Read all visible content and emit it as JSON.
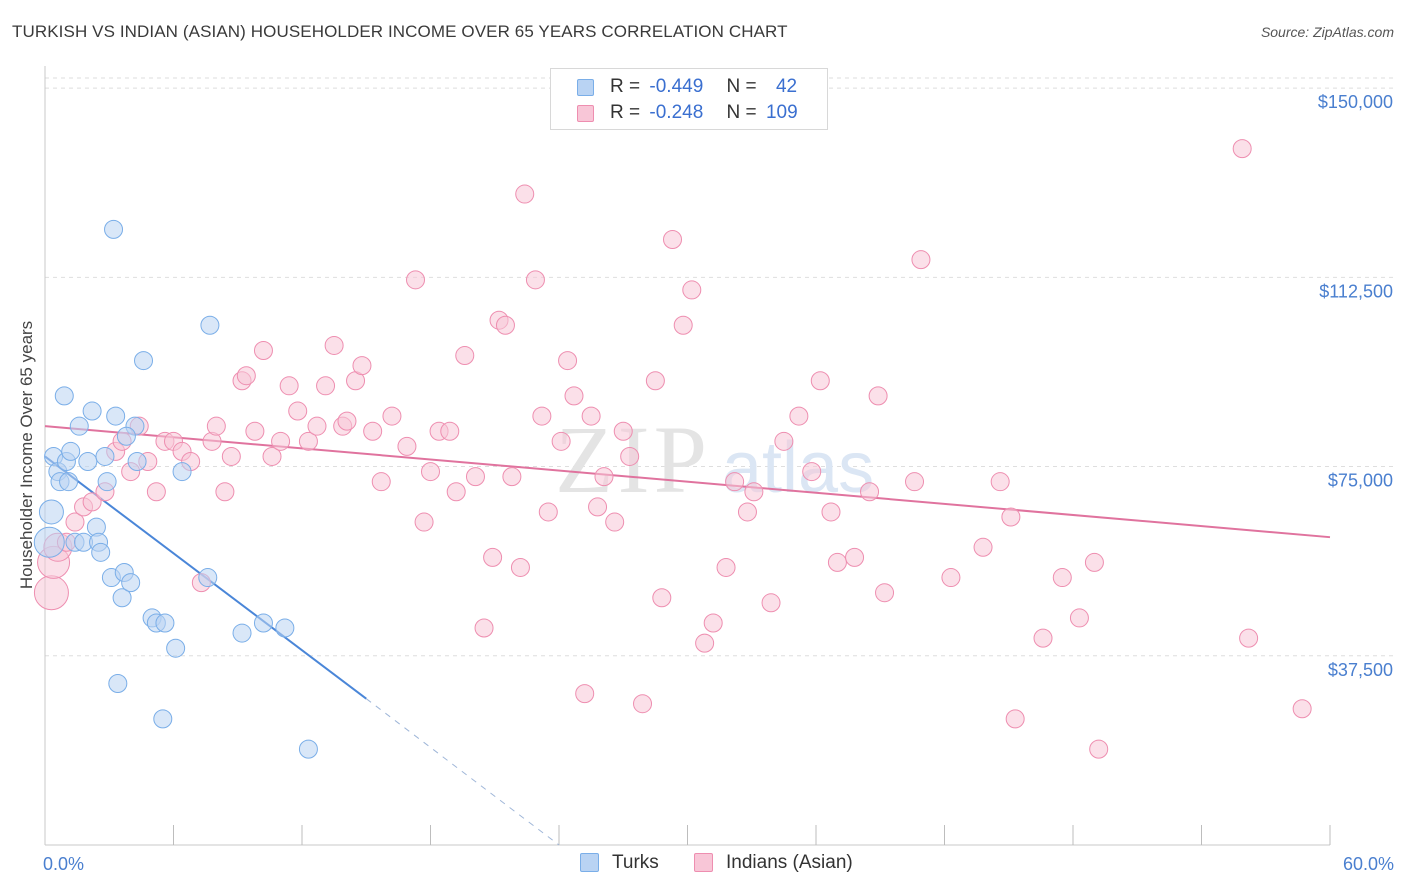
{
  "title": "TURKISH VS INDIAN (ASIAN) HOUSEHOLDER INCOME OVER 65 YEARS CORRELATION CHART",
  "source": "Source: ZipAtlas.com",
  "watermark": {
    "zip": "ZIP",
    "atlas": "atlas"
  },
  "legend_stats": [
    {
      "r_label": "R =",
      "r_value": "-0.449",
      "n_label": "N =",
      "n_value": "42",
      "color": "#7aaee8",
      "fill": "#b9d3f3"
    },
    {
      "r_label": "R =",
      "r_value": "-0.248",
      "n_label": "N =",
      "n_value": "109",
      "color": "#ee8eb0",
      "fill": "#f8c6d7"
    }
  ],
  "chart_data": {
    "type": "scatter",
    "title": "TURKISH VS INDIAN (ASIAN) HOUSEHOLDER INCOME OVER 65 YEARS CORRELATION CHART",
    "xlabel": "",
    "ylabel": "Householder Income Over 65 years",
    "xlim": [
      0,
      60
    ],
    "ylim": [
      0,
      152000
    ],
    "x_tick_labels": [
      "0.0%",
      "60.0%"
    ],
    "y_ticks": [
      37500,
      75000,
      112500,
      150000
    ],
    "y_tick_labels": [
      "$37,500",
      "$75,000",
      "$112,500",
      "$150,000"
    ],
    "grid": true,
    "legend_position": "bottom",
    "series": [
      {
        "name": "Turks",
        "color": "#4a86d8",
        "fill": "#b9d3f3",
        "points": [
          [
            0.2,
            60000
          ],
          [
            0.3,
            66000
          ],
          [
            0.4,
            77000
          ],
          [
            0.6,
            74000
          ],
          [
            0.7,
            72000
          ],
          [
            0.9,
            89000
          ],
          [
            1.0,
            76000
          ],
          [
            1.1,
            72000
          ],
          [
            1.2,
            78000
          ],
          [
            1.4,
            60000
          ],
          [
            1.6,
            83000
          ],
          [
            1.8,
            60000
          ],
          [
            2.0,
            76000
          ],
          [
            2.2,
            86000
          ],
          [
            2.4,
            63000
          ],
          [
            2.5,
            60000
          ],
          [
            2.6,
            58000
          ],
          [
            2.8,
            77000
          ],
          [
            2.9,
            72000
          ],
          [
            3.1,
            53000
          ],
          [
            3.3,
            85000
          ],
          [
            3.4,
            32000
          ],
          [
            3.6,
            49000
          ],
          [
            3.7,
            54000
          ],
          [
            4.0,
            52000
          ],
          [
            4.2,
            83000
          ],
          [
            4.3,
            76000
          ],
          [
            4.6,
            96000
          ],
          [
            5.0,
            45000
          ],
          [
            5.2,
            44000
          ],
          [
            5.5,
            25000
          ],
          [
            6.1,
            39000
          ],
          [
            6.4,
            74000
          ],
          [
            7.6,
            53000
          ],
          [
            3.2,
            122000
          ],
          [
            7.7,
            103000
          ],
          [
            9.2,
            42000
          ],
          [
            10.2,
            44000
          ],
          [
            11.2,
            43000
          ],
          [
            12.3,
            19000
          ],
          [
            3.8,
            81000
          ],
          [
            5.6,
            44000
          ]
        ],
        "trend": {
          "x_start": 0.0,
          "y_start": 77000,
          "x_end": 15.0,
          "y_end": 29000,
          "dash_x_end": 24.0,
          "dash_y_end": 0
        }
      },
      {
        "name": "Indians (Asian)",
        "color": "#e0739e",
        "fill": "#f8c6d7",
        "points": [
          [
            0.3,
            50000
          ],
          [
            0.4,
            56000
          ],
          [
            0.6,
            59000
          ],
          [
            1.0,
            60000
          ],
          [
            1.4,
            64000
          ],
          [
            1.8,
            67000
          ],
          [
            2.2,
            68000
          ],
          [
            2.8,
            70000
          ],
          [
            3.3,
            78000
          ],
          [
            3.6,
            80000
          ],
          [
            4.0,
            74000
          ],
          [
            4.4,
            83000
          ],
          [
            4.8,
            76000
          ],
          [
            5.2,
            70000
          ],
          [
            5.6,
            80000
          ],
          [
            6.0,
            80000
          ],
          [
            6.4,
            78000
          ],
          [
            6.8,
            76000
          ],
          [
            7.3,
            52000
          ],
          [
            7.8,
            80000
          ],
          [
            8.0,
            83000
          ],
          [
            8.4,
            70000
          ],
          [
            8.7,
            77000
          ],
          [
            9.2,
            92000
          ],
          [
            9.4,
            93000
          ],
          [
            9.8,
            82000
          ],
          [
            10.2,
            98000
          ],
          [
            10.6,
            77000
          ],
          [
            11.0,
            80000
          ],
          [
            11.4,
            91000
          ],
          [
            11.8,
            86000
          ],
          [
            12.3,
            80000
          ],
          [
            12.7,
            83000
          ],
          [
            13.1,
            91000
          ],
          [
            13.5,
            99000
          ],
          [
            13.9,
            83000
          ],
          [
            14.1,
            84000
          ],
          [
            14.5,
            92000
          ],
          [
            14.8,
            95000
          ],
          [
            15.3,
            82000
          ],
          [
            15.7,
            72000
          ],
          [
            16.2,
            85000
          ],
          [
            16.9,
            79000
          ],
          [
            17.3,
            112000
          ],
          [
            17.7,
            64000
          ],
          [
            18.0,
            74000
          ],
          [
            18.4,
            82000
          ],
          [
            18.9,
            82000
          ],
          [
            19.2,
            70000
          ],
          [
            19.6,
            97000
          ],
          [
            20.1,
            73000
          ],
          [
            20.5,
            43000
          ],
          [
            20.9,
            57000
          ],
          [
            21.2,
            104000
          ],
          [
            21.5,
            103000
          ],
          [
            21.8,
            73000
          ],
          [
            22.4,
            129000
          ],
          [
            22.9,
            112000
          ],
          [
            23.2,
            85000
          ],
          [
            23.5,
            66000
          ],
          [
            24.1,
            80000
          ],
          [
            24.4,
            96000
          ],
          [
            24.7,
            89000
          ],
          [
            25.2,
            30000
          ],
          [
            25.5,
            85000
          ],
          [
            25.8,
            67000
          ],
          [
            26.1,
            73000
          ],
          [
            26.6,
            64000
          ],
          [
            27.0,
            82000
          ],
          [
            27.3,
            77000
          ],
          [
            27.9,
            28000
          ],
          [
            28.5,
            92000
          ],
          [
            28.8,
            49000
          ],
          [
            29.3,
            120000
          ],
          [
            29.8,
            103000
          ],
          [
            30.2,
            110000
          ],
          [
            30.8,
            40000
          ],
          [
            31.2,
            44000
          ],
          [
            31.8,
            55000
          ],
          [
            32.2,
            72000
          ],
          [
            32.8,
            66000
          ],
          [
            33.1,
            70000
          ],
          [
            33.9,
            48000
          ],
          [
            34.5,
            80000
          ],
          [
            35.2,
            85000
          ],
          [
            35.8,
            74000
          ],
          [
            36.2,
            92000
          ],
          [
            36.7,
            66000
          ],
          [
            37.0,
            56000
          ],
          [
            37.8,
            57000
          ],
          [
            38.5,
            70000
          ],
          [
            38.9,
            89000
          ],
          [
            39.2,
            50000
          ],
          [
            40.6,
            72000
          ],
          [
            40.9,
            116000
          ],
          [
            42.3,
            53000
          ],
          [
            43.8,
            59000
          ],
          [
            44.6,
            72000
          ],
          [
            45.1,
            65000
          ],
          [
            45.3,
            25000
          ],
          [
            46.6,
            41000
          ],
          [
            47.5,
            53000
          ],
          [
            48.3,
            45000
          ],
          [
            49.0,
            56000
          ],
          [
            49.2,
            19000
          ],
          [
            55.9,
            138000
          ],
          [
            56.2,
            41000
          ],
          [
            58.7,
            27000
          ],
          [
            22.2,
            55000
          ]
        ],
        "trend": {
          "x_start": 0.0,
          "y_start": 83000,
          "x_end": 60.0,
          "y_end": 61000
        }
      }
    ]
  }
}
